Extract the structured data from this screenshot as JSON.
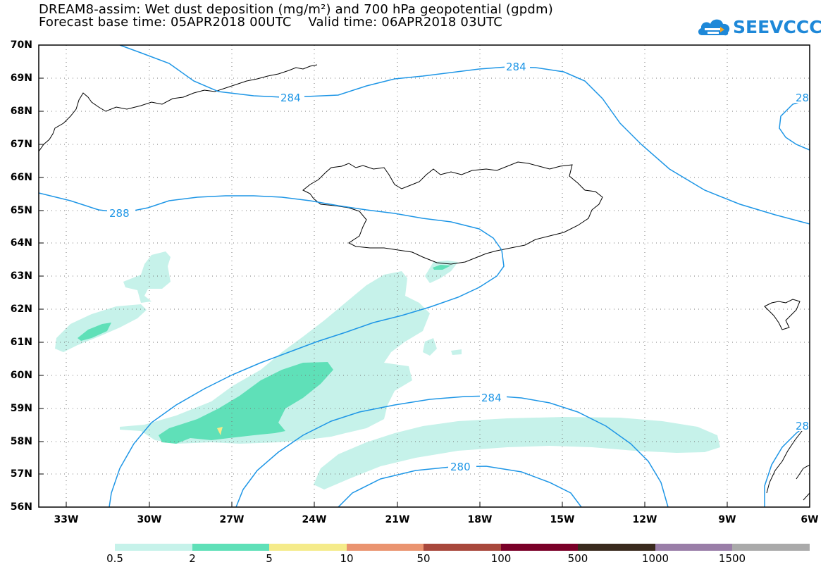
{
  "title": {
    "line1": "DREAM8-assim: Wet dust deposition (mg/m²) and 700 hPa geopotential (gpdm)",
    "line2": "Forecast base time: 05APR2018 00UTC    Valid time: 06APR2018 03UTC"
  },
  "logo": {
    "text": "SEEVCCC",
    "color": "#1e88d8"
  },
  "axes": {
    "lat_labels": [
      "70N",
      "69N",
      "68N",
      "67N",
      "66N",
      "65N",
      "64N",
      "63N",
      "62N",
      "61N",
      "60N",
      "59N",
      "58N",
      "57N",
      "56N"
    ],
    "lon_labels": [
      "33W",
      "30W",
      "27W",
      "24W",
      "21W",
      "18W",
      "15W",
      "12W",
      "9W",
      "6W"
    ]
  },
  "contours": {
    "color": "#1e96e6",
    "labels": [
      "284",
      "284",
      "284",
      "288",
      "280",
      "28",
      "28"
    ]
  },
  "colorbar": {
    "colors": [
      "#c6f2ea",
      "#5fe0b8",
      "#f5eb8a",
      "#ea9470",
      "#a8483c",
      "#7a0028",
      "#3a2a1e",
      "#9a7ea8",
      "#aaaaaa"
    ],
    "labels": [
      "0.5",
      "2",
      "5",
      "10",
      "50",
      "100",
      "500",
      "1000",
      "1500"
    ]
  },
  "shading_colors": {
    "light": "#c6f2ea",
    "medium": "#5fe0b8",
    "high": "#f5eb8a"
  },
  "coastline_color": "#000000"
}
